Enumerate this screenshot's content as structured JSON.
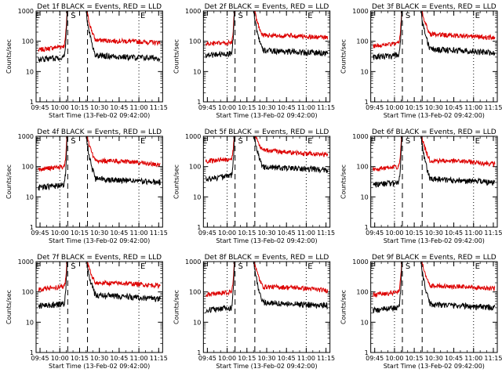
{
  "chart_data": {
    "type": "line",
    "panel_rows": 3,
    "panel_cols": 3,
    "shared": {
      "xlabel": "Start Time (13-Feb-02 09:42:00)",
      "ylabel": "Counts/sec",
      "x_tick_labels": [
        "09:45",
        "10:00",
        "10:15",
        "10:30",
        "10:45",
        "11:00",
        "11:15"
      ],
      "x_tick_values": [
        9.75,
        10.0,
        10.25,
        10.5,
        10.75,
        11.0,
        11.25
      ],
      "xlim": [
        9.7,
        11.3
      ],
      "y_tick_labels": [
        "1",
        "10",
        "100",
        "1000"
      ],
      "y_tick_values": [
        1,
        10,
        100,
        1000
      ],
      "ylim": [
        1,
        1000
      ],
      "yscale": "log",
      "dotted_lines_x": [
        10.0,
        11.0
      ],
      "dashed_lines_x": [
        10.1,
        10.35
      ],
      "markers": [
        {
          "label": "E",
          "x": 9.72
        },
        {
          "label": "S",
          "x": 10.17
        },
        {
          "label": "E",
          "x": 11.05
        }
      ],
      "series_colors": {
        "events": "#000000",
        "lld": "#dd0000"
      },
      "flare": {
        "rise_start": 10.05,
        "plateau_start": 10.1,
        "plateau_end": 10.33,
        "decay_end": 10.45
      }
    },
    "panels": [
      {
        "title": "Det 1f BLACK = Events, RED = LLD",
        "events_level": [
          25,
          30,
          35,
          30,
          28
        ],
        "lld_level": [
          50,
          70,
          110,
          100,
          90
        ]
      },
      {
        "title": "Det 2f BLACK = Events, RED = LLD",
        "events_level": [
          35,
          40,
          50,
          45,
          40
        ],
        "lld_level": [
          80,
          90,
          160,
          150,
          130
        ]
      },
      {
        "title": "Det 3f BLACK = Events, RED = LLD",
        "events_level": [
          30,
          35,
          55,
          50,
          40
        ],
        "lld_level": [
          70,
          85,
          170,
          150,
          130
        ]
      },
      {
        "title": "Det 4f BLACK = Events, RED = LLD",
        "events_level": [
          20,
          25,
          40,
          35,
          30
        ],
        "lld_level": [
          80,
          100,
          160,
          150,
          110
        ]
      },
      {
        "title": "Det 5f BLACK = Events, RED = LLD",
        "events_level": [
          40,
          50,
          100,
          90,
          80
        ],
        "lld_level": [
          150,
          180,
          350,
          280,
          250
        ]
      },
      {
        "title": "Det 6f BLACK = Events, RED = LLD",
        "events_level": [
          25,
          30,
          40,
          35,
          30
        ],
        "lld_level": [
          80,
          100,
          160,
          150,
          120
        ]
      },
      {
        "title": "Det 7f BLACK = Events, RED = LLD",
        "events_level": [
          35,
          40,
          80,
          70,
          60
        ],
        "lld_level": [
          120,
          150,
          200,
          190,
          160
        ]
      },
      {
        "title": "Det 8f BLACK = Events, RED = LLD",
        "events_level": [
          25,
          30,
          45,
          40,
          35
        ],
        "lld_level": [
          80,
          100,
          150,
          140,
          110
        ]
      },
      {
        "title": "Det 9f BLACK = Events, RED = LLD",
        "events_level": [
          25,
          30,
          40,
          35,
          30
        ],
        "lld_level": [
          80,
          100,
          160,
          150,
          130
        ]
      }
    ]
  }
}
